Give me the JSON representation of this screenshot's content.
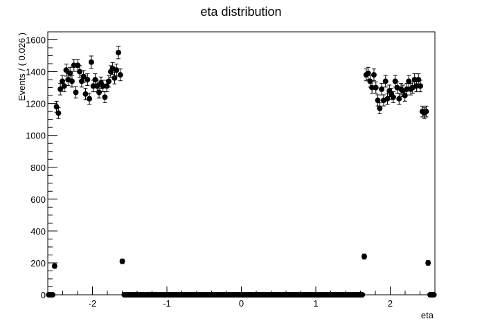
{
  "chart_data": {
    "type": "scatter",
    "title": "eta distribution",
    "xlabel": "eta",
    "ylabel": "Events / ( 0.026 )",
    "xlim": [
      -2.6,
      2.6
    ],
    "ylim": [
      0,
      1650
    ],
    "x_ticks": [
      -2,
      -1,
      0,
      1,
      2
    ],
    "x_tick_labels": [
      "-2",
      "-1",
      "0",
      "1",
      "2"
    ],
    "y_ticks": [
      0,
      200,
      400,
      600,
      800,
      1000,
      1200,
      1400,
      1600
    ],
    "y_tick_labels": [
      "0",
      "200",
      "400",
      "600",
      "800",
      "1000",
      "1200",
      "1400",
      "1600"
    ],
    "grid": false,
    "legend": "none",
    "marker": "filled-circle-with-error-bars",
    "x": [
      -2.587,
      -2.561,
      -2.535,
      -2.509,
      -2.483,
      -2.457,
      -2.431,
      -2.405,
      -2.379,
      -2.353,
      -2.327,
      -2.301,
      -2.275,
      -2.249,
      -2.223,
      -2.197,
      -2.171,
      -2.145,
      -2.119,
      -2.093,
      -2.067,
      -2.041,
      -2.015,
      -1.989,
      -1.963,
      -1.937,
      -1.911,
      -1.885,
      -1.859,
      -1.833,
      -1.807,
      -1.781,
      -1.755,
      -1.729,
      -1.703,
      -1.677,
      -1.651,
      -1.625,
      -1.599,
      -1.573,
      -1.547,
      -1.521,
      -1.495,
      -1.469,
      -1.443,
      -1.417,
      -1.391,
      -1.365,
      -1.339,
      -1.313,
      -1.287,
      -1.261,
      -1.235,
      -1.209,
      -1.183,
      -1.157,
      -1.131,
      -1.105,
      -1.079,
      -1.053,
      -1.027,
      -1.001,
      -0.975,
      -0.949,
      -0.923,
      -0.897,
      -0.871,
      -0.845,
      -0.819,
      -0.793,
      -0.767,
      -0.741,
      -0.715,
      -0.689,
      -0.663,
      -0.637,
      -0.611,
      -0.585,
      -0.559,
      -0.533,
      -0.507,
      -0.481,
      -0.455,
      -0.429,
      -0.403,
      -0.377,
      -0.351,
      -0.325,
      -0.299,
      -0.273,
      -0.247,
      -0.221,
      -0.195,
      -0.169,
      -0.143,
      -0.117,
      -0.091,
      -0.065,
      -0.039,
      -0.013,
      0.013,
      0.039,
      0.065,
      0.091,
      0.117,
      0.143,
      0.169,
      0.195,
      0.221,
      0.247,
      0.273,
      0.299,
      0.325,
      0.351,
      0.377,
      0.403,
      0.429,
      0.455,
      0.481,
      0.507,
      0.533,
      0.559,
      0.585,
      0.611,
      0.637,
      0.663,
      0.689,
      0.715,
      0.741,
      0.767,
      0.793,
      0.819,
      0.845,
      0.871,
      0.897,
      0.923,
      0.949,
      0.975,
      1.001,
      1.027,
      1.053,
      1.079,
      1.105,
      1.131,
      1.157,
      1.183,
      1.209,
      1.235,
      1.261,
      1.287,
      1.313,
      1.339,
      1.365,
      1.391,
      1.417,
      1.443,
      1.469,
      1.495,
      1.521,
      1.547,
      1.573,
      1.599,
      1.625,
      1.651,
      1.677,
      1.703,
      1.729,
      1.755,
      1.781,
      1.807,
      1.833,
      1.859,
      1.885,
      1.911,
      1.937,
      1.963,
      1.989,
      2.015,
      2.041,
      2.067,
      2.093,
      2.119,
      2.145,
      2.171,
      2.197,
      2.223,
      2.249,
      2.275,
      2.301,
      2.327,
      2.353,
      2.379,
      2.405,
      2.431,
      2.457,
      2.483,
      2.509,
      2.535,
      2.561,
      2.587
    ],
    "y": [
      0,
      0,
      0,
      180,
      1180,
      1140,
      1290,
      1340,
      1310,
      1410,
      1350,
      1390,
      1340,
      1440,
      1270,
      1440,
      1400,
      1340,
      1370,
      1260,
      1350,
      1230,
      1460,
      1310,
      1350,
      1310,
      1270,
      1330,
      1310,
      1240,
      1310,
      1340,
      1400,
      1420,
      1360,
      1410,
      1520,
      1380,
      210,
      0,
      0,
      0,
      0,
      0,
      0,
      0,
      0,
      0,
      0,
      0,
      0,
      0,
      0,
      0,
      0,
      0,
      0,
      0,
      0,
      0,
      0,
      0,
      0,
      0,
      0,
      0,
      0,
      0,
      0,
      0,
      0,
      0,
      0,
      0,
      0,
      0,
      0,
      0,
      0,
      0,
      0,
      0,
      0,
      0,
      0,
      0,
      0,
      0,
      0,
      0,
      0,
      0,
      0,
      0,
      0,
      0,
      0,
      0,
      0,
      0,
      0,
      0,
      0,
      0,
      0,
      0,
      0,
      0,
      0,
      0,
      0,
      0,
      0,
      0,
      0,
      0,
      0,
      0,
      0,
      0,
      0,
      0,
      0,
      0,
      0,
      0,
      0,
      0,
      0,
      0,
      0,
      0,
      0,
      0,
      0,
      0,
      0,
      0,
      0,
      0,
      0,
      0,
      0,
      0,
      0,
      0,
      0,
      0,
      0,
      0,
      0,
      0,
      0,
      0,
      0,
      0,
      0,
      0,
      0,
      0,
      0,
      0,
      0,
      240,
      1380,
      1390,
      1340,
      1300,
      1380,
      1300,
      1220,
      1170,
      1290,
      1220,
      1340,
      1230,
      1280,
      1260,
      1240,
      1340,
      1300,
      1230,
      1290,
      1280,
      1250,
      1290,
      1340,
      1290,
      1300,
      1350,
      1310,
      1350,
      1310,
      1150,
      1140,
      1150,
      200,
      0,
      0,
      0
    ]
  }
}
